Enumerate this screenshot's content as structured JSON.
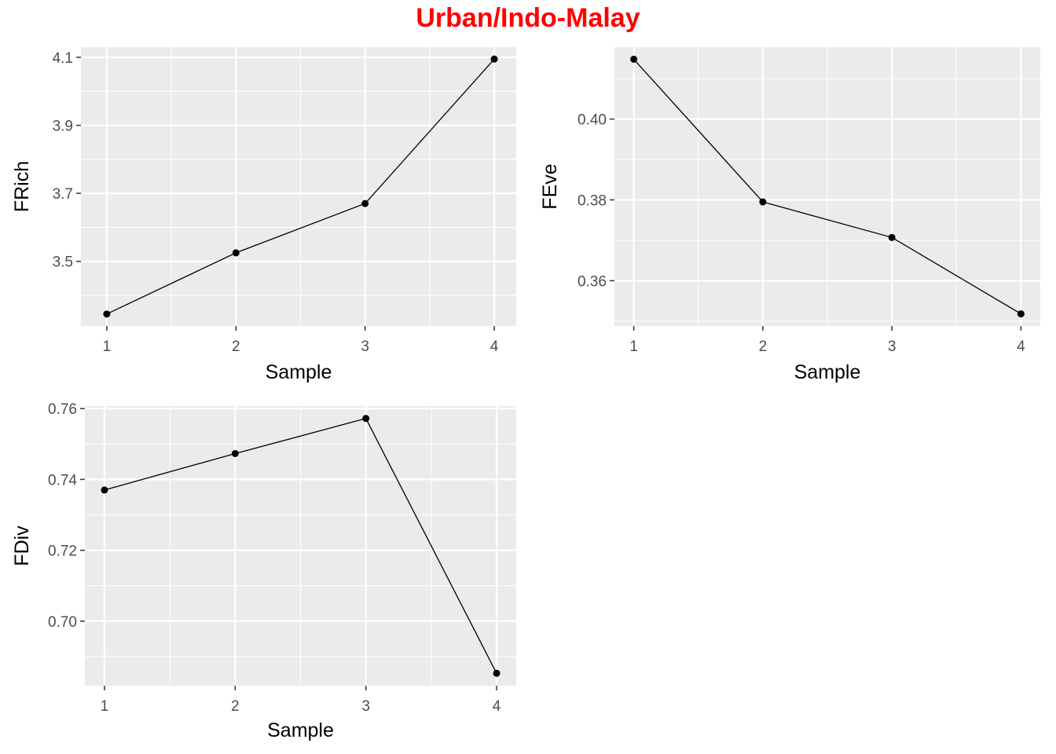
{
  "title": "Urban/Indo-Malay",
  "colors": {
    "title": "#ff0000",
    "panel": "#ebebeb",
    "grid": "#ffffff",
    "line": "#000000",
    "tick_text": "#4d4d4d"
  },
  "chart_data": [
    {
      "type": "line",
      "xlabel": "Sample",
      "ylabel": "FRich",
      "x": [
        1,
        2,
        3,
        4
      ],
      "series": [
        {
          "values": [
            3.345,
            3.525,
            3.67,
            4.095
          ]
        }
      ],
      "xticks": [
        "1",
        "2",
        "3",
        "4"
      ],
      "yticks": [
        "3.5",
        "3.7",
        "3.9",
        "4.1"
      ],
      "ytick_values": [
        3.5,
        3.7,
        3.9,
        4.1
      ],
      "ylim": [
        3.31,
        4.13
      ],
      "xlim": [
        0.8,
        4.17
      ],
      "grid": true,
      "legend": "none"
    },
    {
      "type": "line",
      "xlabel": "Sample",
      "ylabel": "FEve",
      "x": [
        1,
        2,
        3,
        4
      ],
      "series": [
        {
          "values": [
            0.4148,
            0.3795,
            0.3707,
            0.3518
          ]
        }
      ],
      "xticks": [
        "1",
        "2",
        "3",
        "4"
      ],
      "yticks": [
        "0.36",
        "0.38",
        "0.40"
      ],
      "ytick_values": [
        0.36,
        0.38,
        0.4
      ],
      "ylim": [
        0.3488,
        0.4178
      ],
      "xlim": [
        0.85,
        4.15
      ],
      "grid": true,
      "legend": "none"
    },
    {
      "type": "line",
      "xlabel": "Sample",
      "ylabel": "FDiv",
      "x": [
        1,
        2,
        3,
        4
      ],
      "series": [
        {
          "values": [
            0.737,
            0.7473,
            0.7572,
            0.6853
          ]
        }
      ],
      "xticks": [
        "1",
        "2",
        "3",
        "4"
      ],
      "yticks": [
        "0.70",
        "0.72",
        "0.74",
        "0.76"
      ],
      "ytick_values": [
        0.7,
        0.72,
        0.74,
        0.76
      ],
      "ylim": [
        0.6818,
        0.7607
      ],
      "xlim": [
        0.85,
        4.15
      ],
      "grid": true,
      "legend": "none"
    }
  ]
}
